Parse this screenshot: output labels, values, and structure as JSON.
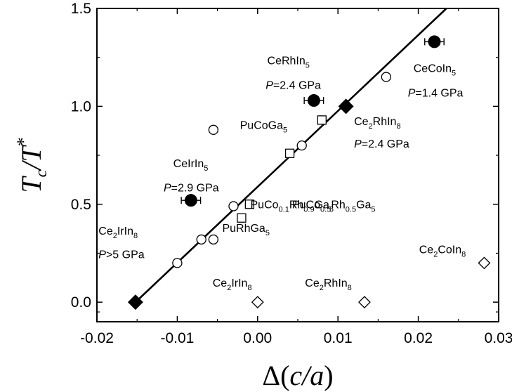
{
  "chart_data": {
    "type": "scatter",
    "title": "",
    "xlabel": {
      "prefix": "Δ(",
      "var": "c/a",
      "suffix": ")"
    },
    "ylabel": {
      "base": "T",
      "sub": "c",
      "slash": "/T",
      "sup": "*"
    },
    "xlim": [
      -0.02,
      0.03
    ],
    "ylim": [
      -0.1,
      1.5
    ],
    "xticks": [
      "-0.02",
      "-0.01",
      "0.00",
      "0.01",
      "0.02",
      "0.03"
    ],
    "xtick_values": [
      -0.02,
      -0.01,
      0.0,
      0.01,
      0.02,
      0.03
    ],
    "yticks": [
      "0.0",
      "0.5",
      "1.0",
      "1.5"
    ],
    "ytick_values": [
      0.0,
      0.5,
      1.0,
      1.5
    ],
    "fit_line": {
      "x1": -0.0152,
      "y1": 0.0,
      "x2": 0.0235,
      "y2": 1.5
    },
    "series": [
      {
        "marker": "filled-circle",
        "points": [
          {
            "x": -0.0083,
            "y": 0.52,
            "xerr": 0.0012
          },
          {
            "x": 0.007,
            "y": 1.03,
            "xerr": 0.0012
          },
          {
            "x": 0.022,
            "y": 1.33,
            "xerr": 0.0012
          }
        ]
      },
      {
        "marker": "filled-diamond",
        "points": [
          {
            "x": -0.0152,
            "y": 0.0
          },
          {
            "x": 0.011,
            "y": 1.0
          }
        ]
      },
      {
        "marker": "open-circle",
        "points": [
          {
            "x": -0.01,
            "y": 0.2
          },
          {
            "x": -0.007,
            "y": 0.32
          },
          {
            "x": -0.0055,
            "y": 0.32
          },
          {
            "x": -0.003,
            "y": 0.49
          },
          {
            "x": 0.0055,
            "y": 0.8
          },
          {
            "x": 0.016,
            "y": 1.15
          },
          {
            "x": -0.0055,
            "y": 0.88
          }
        ]
      },
      {
        "marker": "open-square",
        "points": [
          {
            "x": -0.002,
            "y": 0.43
          },
          {
            "x": -0.001,
            "y": 0.5
          },
          {
            "x": 0.004,
            "y": 0.76
          },
          {
            "x": 0.008,
            "y": 0.93
          }
        ]
      },
      {
        "marker": "open-diamond",
        "points": [
          {
            "x": 0.0,
            "y": 0.0
          },
          {
            "x": 0.0133,
            "y": 0.0
          },
          {
            "x": 0.0282,
            "y": 0.2
          }
        ]
      }
    ],
    "annotations": [
      {
        "id": "cecoin5",
        "x": 0.0194,
        "y": 1.175,
        "parts": [
          [
            "Ce",
            ""
          ],
          [
            "CoIn",
            ""
          ],
          [
            "5",
            "sub"
          ]
        ]
      },
      {
        "id": "cecoin5-p",
        "x": 0.0187,
        "y": 1.05,
        "parts": [
          [
            "P",
            "it"
          ],
          [
            "=1.4 GPa",
            ""
          ]
        ]
      },
      {
        "id": "cerhin5",
        "x": 0.0012,
        "y": 1.215,
        "parts": [
          [
            "CeRhIn",
            ""
          ],
          [
            "5",
            "sub"
          ]
        ]
      },
      {
        "id": "cerhin5-p",
        "x": 0.001,
        "y": 1.09,
        "parts": [
          [
            "P",
            "it"
          ],
          [
            "=2.4 GPa",
            ""
          ]
        ]
      },
      {
        "id": "pucoga5",
        "x": -0.0022,
        "y": 0.885,
        "parts": [
          [
            "PuCoGa",
            ""
          ],
          [
            "5",
            "sub"
          ]
        ]
      },
      {
        "id": "ce2rhin8",
        "x": 0.012,
        "y": 0.905,
        "parts": [
          [
            "Ce",
            ""
          ],
          [
            "2",
            "sub"
          ],
          [
            "RhIn",
            ""
          ],
          [
            "8",
            "sub"
          ]
        ]
      },
      {
        "id": "ce2rhin8-p",
        "x": 0.012,
        "y": 0.79,
        "parts": [
          [
            "P",
            "it"
          ],
          [
            "=2.4 GPa",
            ""
          ]
        ]
      },
      {
        "id": "ceirin5",
        "x": -0.0105,
        "y": 0.69,
        "parts": [
          [
            "CeIrIn",
            ""
          ],
          [
            "5",
            "sub"
          ]
        ]
      },
      {
        "id": "ceirin5-p",
        "x": -0.0117,
        "y": 0.565,
        "parts": [
          [
            "P",
            "it"
          ],
          [
            "=2.9 GPa",
            ""
          ]
        ]
      },
      {
        "id": "puco05rh05ga5",
        "x": 0.0043,
        "y": 0.48,
        "parts": [
          [
            "PuCo",
            ""
          ],
          [
            "0.5",
            "sub"
          ],
          [
            "Rh",
            ""
          ],
          [
            "0.5",
            "sub"
          ],
          [
            "Ga",
            ""
          ],
          [
            "5",
            "sub"
          ]
        ]
      },
      {
        "id": "puco01rh09ga5",
        "x": -0.0009,
        "y": 0.48,
        "parts": [
          [
            "PuCo",
            ""
          ],
          [
            "0.1",
            "sub"
          ],
          [
            "Rh",
            ""
          ],
          [
            "0.9",
            "sub"
          ],
          [
            "Ga",
            ""
          ],
          [
            "5",
            "sub"
          ]
        ]
      },
      {
        "id": "purhga5",
        "x": -0.0044,
        "y": 0.36,
        "parts": [
          [
            "PuRhGa",
            ""
          ],
          [
            "5",
            "sub"
          ]
        ]
      },
      {
        "id": "ce2irin8-left",
        "x": -0.0198,
        "y": 0.345,
        "parts": [
          [
            "Ce",
            ""
          ],
          [
            "2",
            "sub"
          ],
          [
            "IrIn",
            ""
          ],
          [
            "8",
            "sub"
          ]
        ]
      },
      {
        "id": "ce2irin8-left-p",
        "x": -0.0198,
        "y": 0.225,
        "parts": [
          [
            "P",
            "it"
          ],
          [
            ">5 GPa",
            ""
          ]
        ]
      },
      {
        "id": "ce2irin8",
        "x": -0.0056,
        "y": 0.08,
        "parts": [
          [
            "Ce",
            ""
          ],
          [
            "2",
            "sub"
          ],
          [
            "IrIn",
            ""
          ],
          [
            "8",
            "sub"
          ]
        ]
      },
      {
        "id": "ce2rhin8-bottom",
        "x": 0.0059,
        "y": 0.08,
        "parts": [
          [
            "Ce",
            ""
          ],
          [
            "2",
            "sub"
          ],
          [
            "RhIn",
            ""
          ],
          [
            "8",
            "sub"
          ]
        ]
      },
      {
        "id": "ce2coin8",
        "x": 0.0201,
        "y": 0.25,
        "parts": [
          [
            "Ce",
            ""
          ],
          [
            "2",
            "sub"
          ],
          [
            "CoIn",
            ""
          ],
          [
            "8",
            "sub"
          ]
        ]
      }
    ]
  }
}
